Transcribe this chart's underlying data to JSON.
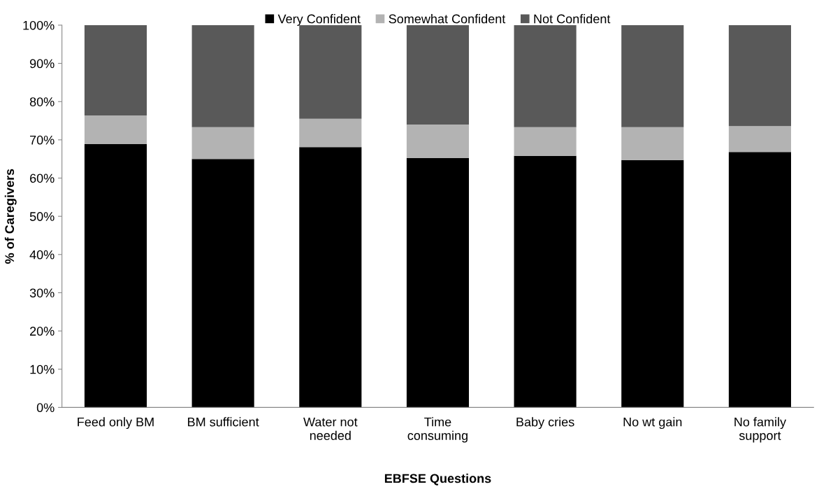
{
  "chart_data": {
    "type": "bar",
    "stacked": true,
    "xlabel": "EBFSE Questions",
    "ylabel": "% of Caregivers",
    "categories": [
      "Feed only BM",
      "BM sufficient",
      "Water not\nneeded",
      "Time\nconsuming",
      "Baby cries",
      "No wt gain",
      "No family\nsupport"
    ],
    "series": [
      {
        "name": "Very Confident",
        "color": "#000000",
        "values": [
          68.9,
          65.0,
          68.1,
          65.2,
          65.8,
          64.7,
          66.8
        ]
      },
      {
        "name": "Somewhat Confident",
        "color": "#b3b3b3",
        "values": [
          7.5,
          8.3,
          7.4,
          8.8,
          7.5,
          8.6,
          6.8
        ]
      },
      {
        "name": "Not Confident",
        "color": "#595959",
        "values": [
          23.6,
          26.7,
          24.5,
          26.0,
          26.7,
          26.7,
          26.4
        ]
      }
    ],
    "ylim": [
      0,
      100
    ],
    "yticks": [
      {
        "value": 0,
        "label": "0%"
      },
      {
        "value": 10,
        "label": "10%"
      },
      {
        "value": 20,
        "label": "20%"
      },
      {
        "value": 30,
        "label": "30%"
      },
      {
        "value": 40,
        "label": "40%"
      },
      {
        "value": 50,
        "label": "50%"
      },
      {
        "value": 60,
        "label": "60%"
      },
      {
        "value": 70,
        "label": "70%"
      },
      {
        "value": 80,
        "label": "80%"
      },
      {
        "value": 90,
        "label": "90%"
      },
      {
        "value": 100,
        "label": "100%"
      }
    ],
    "grid": false,
    "legend": "top"
  }
}
